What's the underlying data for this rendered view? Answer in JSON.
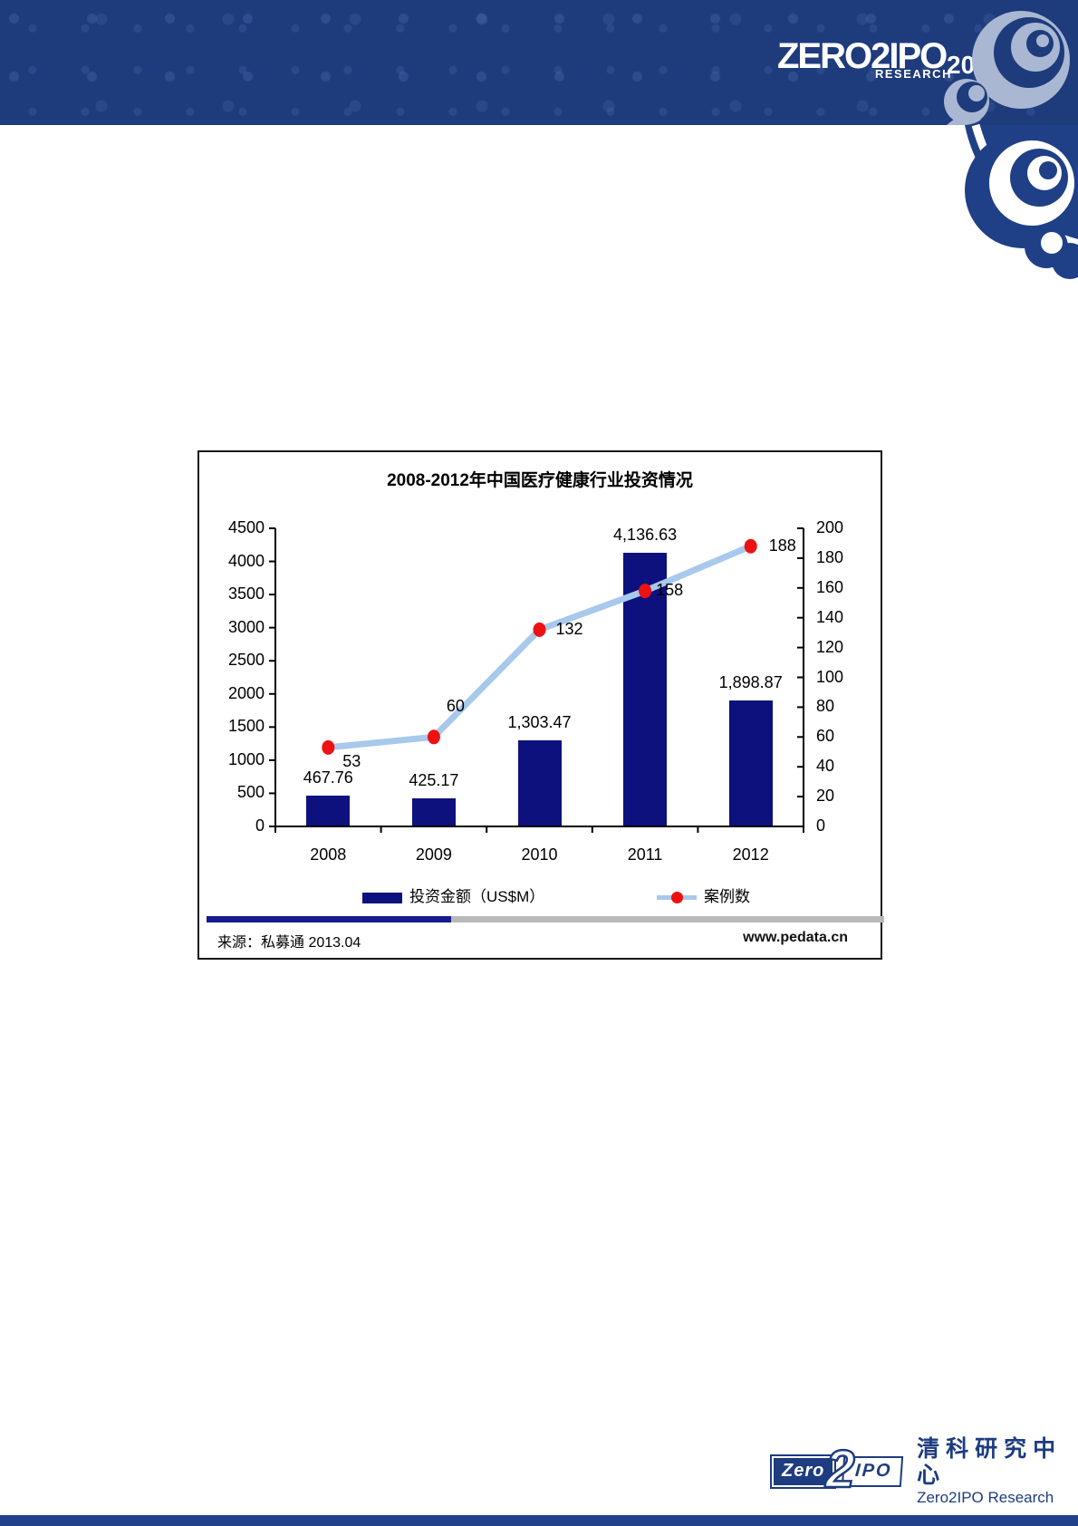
{
  "header": {
    "logo_main": "ZERO2IPO",
    "logo_sub": "RESEARCH",
    "logo_year": "2013"
  },
  "chart_data": {
    "type": "bar",
    "title": "2008-2012年中国医疗健康行业投资情况",
    "categories": [
      "2008",
      "2009",
      "2010",
      "2011",
      "2012"
    ],
    "series": [
      {
        "name": "投资金额（US$M）",
        "kind": "bar",
        "axis": "left",
        "values": [
          467.76,
          425.17,
          1303.47,
          4136.63,
          1898.87
        ],
        "labels": [
          "467.76",
          "425.17",
          "1,303.47",
          "4,136.63",
          "1,898.87"
        ],
        "color": "#0d117e"
      },
      {
        "name": "案例数",
        "kind": "line",
        "axis": "right",
        "values": [
          53,
          60,
          132,
          158,
          188
        ],
        "labels": [
          "53",
          "60",
          "132",
          "158",
          "188"
        ],
        "color": "#a8c8ec",
        "marker_color": "#ee1111",
        "label_offsets": [
          [
            16,
            16
          ],
          [
            14,
            -33
          ],
          [
            18,
            0
          ],
          [
            12,
            0
          ],
          [
            20,
            0
          ]
        ]
      }
    ],
    "left_axis": {
      "min": 0,
      "max": 4500,
      "step": 500,
      "ticks": [
        "0",
        "500",
        "1000",
        "1500",
        "2000",
        "2500",
        "3000",
        "3500",
        "4000",
        "4500"
      ]
    },
    "right_axis": {
      "min": 0,
      "max": 200,
      "step": 20,
      "ticks": [
        "0",
        "20",
        "40",
        "60",
        "80",
        "100",
        "120",
        "140",
        "160",
        "180",
        "200"
      ]
    },
    "grid": false,
    "legend_position": "bottom"
  },
  "chart_footer": {
    "source": "来源：私募通 2013.04",
    "website": "www.pedata.cn"
  },
  "footer": {
    "logo_zero": "Zero",
    "logo_2": "2",
    "logo_ipo": "IPO",
    "name_cn": "清科研究中心",
    "name_en": "Zero2IPO Research"
  },
  "colors": {
    "band_blue": "#1e3b7c",
    "bar_navy": "#0d117e",
    "line_blue": "#a8c8ec",
    "marker_red": "#ee1111",
    "divider_navy": "#171b8f",
    "divider_gray": "#b9b9b9",
    "footer_blue": "#1e3c80",
    "bottom_bar_blue": "#21418b"
  }
}
